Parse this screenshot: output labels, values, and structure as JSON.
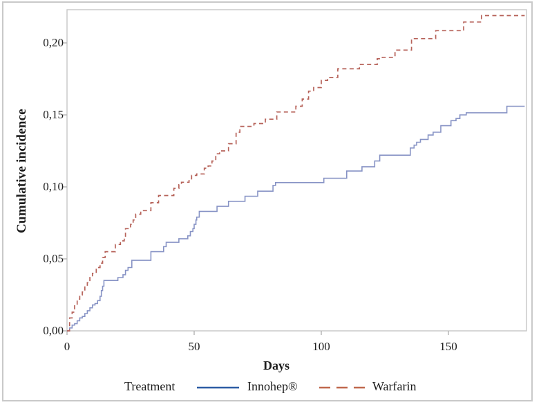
{
  "figure": {
    "y_axis_title": "Cumulative incidence",
    "x_axis_title": "Days",
    "legend": {
      "title": "Treatment"
    },
    "colors": {
      "axis_frame": "#c6c6c6",
      "tick_mark": "#b3b3b3",
      "text": "#1c1c1c",
      "outer_border": "#c9c9c9",
      "background": "#ffffff"
    }
  },
  "chart_data": {
    "type": "line",
    "subtype": "step-after-cumulative-incidence",
    "xlabel": "Days",
    "ylabel": "Cumulative incidence",
    "xlim": [
      0,
      180
    ],
    "ylim": [
      0,
      0.223
    ],
    "grid": false,
    "legend_position": "bottom",
    "decimal_separator": ",",
    "x_ticks": [
      {
        "value": 0,
        "label": "0"
      },
      {
        "value": 50,
        "label": "50"
      },
      {
        "value": 100,
        "label": "100"
      },
      {
        "value": 150,
        "label": "150"
      }
    ],
    "y_ticks": [
      {
        "value": 0.0,
        "label": "0,00"
      },
      {
        "value": 0.05,
        "label": "0,05"
      },
      {
        "value": 0.1,
        "label": "0,10"
      },
      {
        "value": 0.15,
        "label": "0,15"
      },
      {
        "value": 0.2,
        "label": "0,20"
      }
    ],
    "series": [
      {
        "name": "Innohep®",
        "style": "solid",
        "line_color": "#8793c5",
        "legend_color": "#2d5ca4",
        "points": [
          [
            0,
            0
          ],
          [
            1,
            0.002
          ],
          [
            2,
            0.004
          ],
          [
            3,
            0.005
          ],
          [
            4,
            0.007
          ],
          [
            5,
            0.009
          ],
          [
            6,
            0.01
          ],
          [
            7,
            0.012
          ],
          [
            8,
            0.014
          ],
          [
            9,
            0.016
          ],
          [
            10,
            0.018
          ],
          [
            11,
            0.019
          ],
          [
            12,
            0.021
          ],
          [
            13,
            0.024
          ],
          [
            13.5,
            0.028
          ],
          [
            14,
            0.031
          ],
          [
            14.5,
            0.035
          ],
          [
            20,
            0.037
          ],
          [
            22,
            0.039
          ],
          [
            23,
            0.042
          ],
          [
            24,
            0.044
          ],
          [
            25.5,
            0.049
          ],
          [
            33,
            0.055
          ],
          [
            38,
            0.0585
          ],
          [
            39,
            0.0615
          ],
          [
            44,
            0.064
          ],
          [
            47.5,
            0.066
          ],
          [
            48.5,
            0.069
          ],
          [
            49.5,
            0.071
          ],
          [
            50,
            0.074
          ],
          [
            50.7,
            0.077
          ],
          [
            51,
            0.079
          ],
          [
            52,
            0.083
          ],
          [
            59,
            0.0865
          ],
          [
            63.5,
            0.09
          ],
          [
            70,
            0.0935
          ],
          [
            75,
            0.097
          ],
          [
            81,
            0.101
          ],
          [
            82,
            0.103
          ],
          [
            101,
            0.106
          ],
          [
            110,
            0.111
          ],
          [
            116,
            0.114
          ],
          [
            121,
            0.118
          ],
          [
            123,
            0.122
          ],
          [
            135,
            0.127
          ],
          [
            136.5,
            0.129
          ],
          [
            137.5,
            0.131
          ],
          [
            139,
            0.133
          ],
          [
            142,
            0.136
          ],
          [
            144,
            0.138
          ],
          [
            147,
            0.1425
          ],
          [
            151,
            0.146
          ],
          [
            153,
            0.1475
          ],
          [
            154.5,
            0.15
          ],
          [
            157,
            0.1515
          ],
          [
            173,
            0.156
          ],
          [
            180,
            0.156
          ]
        ]
      },
      {
        "name": "Warfarin",
        "style": "dashed",
        "line_color": "#b66259",
        "legend_color": "#c0684e",
        "points": [
          [
            0,
            0
          ],
          [
            1,
            0.009
          ],
          [
            2,
            0.013
          ],
          [
            3,
            0.018
          ],
          [
            4,
            0.022
          ],
          [
            5,
            0.025
          ],
          [
            6,
            0.027
          ],
          [
            7,
            0.031
          ],
          [
            8,
            0.0335
          ],
          [
            9,
            0.0375
          ],
          [
            10,
            0.04
          ],
          [
            11.5,
            0.044
          ],
          [
            13,
            0.047
          ],
          [
            14,
            0.051
          ],
          [
            15,
            0.055
          ],
          [
            19,
            0.06
          ],
          [
            21,
            0.0625
          ],
          [
            22.5,
            0.065
          ],
          [
            23,
            0.071
          ],
          [
            25,
            0.074
          ],
          [
            26,
            0.077
          ],
          [
            27,
            0.081
          ],
          [
            29,
            0.0835
          ],
          [
            33,
            0.089
          ],
          [
            36,
            0.094
          ],
          [
            42,
            0.099
          ],
          [
            44,
            0.1015
          ],
          [
            45,
            0.1032
          ],
          [
            48,
            0.1056
          ],
          [
            49,
            0.108
          ],
          [
            51,
            0.109
          ],
          [
            54,
            0.113
          ],
          [
            55.5,
            0.1145
          ],
          [
            57,
            0.118
          ],
          [
            58.5,
            0.123
          ],
          [
            60,
            0.125
          ],
          [
            63.5,
            0.13
          ],
          [
            66.5,
            0.138
          ],
          [
            68,
            0.142
          ],
          [
            73.5,
            0.144
          ],
          [
            78,
            0.147
          ],
          [
            82.5,
            0.152
          ],
          [
            90,
            0.156
          ],
          [
            92.5,
            0.161
          ],
          [
            95,
            0.1665
          ],
          [
            97,
            0.169
          ],
          [
            100,
            0.174
          ],
          [
            102.5,
            0.176
          ],
          [
            106.5,
            0.182
          ],
          [
            115,
            0.185
          ],
          [
            122,
            0.189
          ],
          [
            124,
            0.19
          ],
          [
            129,
            0.195
          ],
          [
            135.5,
            0.203
          ],
          [
            145,
            0.2085
          ],
          [
            156,
            0.2145
          ],
          [
            163,
            0.219
          ],
          [
            180,
            0.219
          ]
        ]
      }
    ]
  }
}
